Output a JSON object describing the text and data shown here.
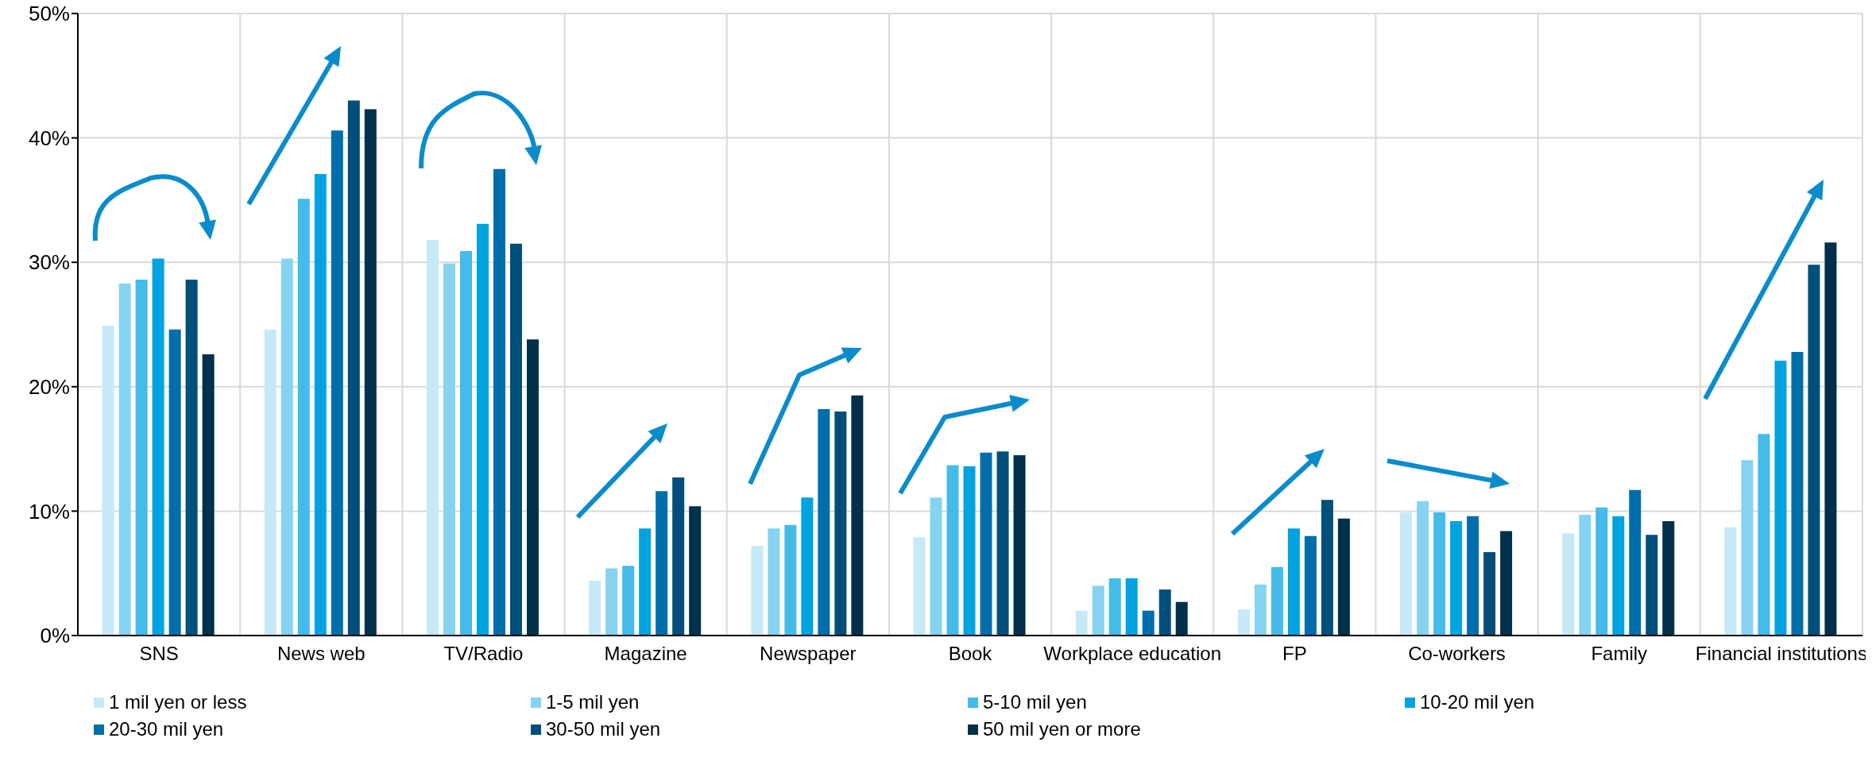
{
  "chart_data": {
    "type": "bar",
    "categories": [
      "SNS",
      "News web",
      "TV/Radio",
      "Magazine",
      "Newspaper",
      "Book",
      "Workplace education",
      "FP",
      "Co-workers",
      "Family",
      "Financial institutions"
    ],
    "series": [
      {
        "name": "1 mil yen or less",
        "color": "#c6e9f7",
        "values": [
          24.9,
          24.6,
          31.8,
          4.4,
          7.2,
          7.9,
          2.0,
          2.1,
          9.9,
          8.2,
          8.7
        ]
      },
      {
        "name": "1-5 mil yen",
        "color": "#86d3f1",
        "values": [
          28.3,
          30.3,
          29.9,
          5.4,
          8.6,
          11.1,
          4.0,
          4.1,
          10.8,
          9.7,
          14.1
        ]
      },
      {
        "name": "5-10 mil yen",
        "color": "#44bbe8",
        "values": [
          28.6,
          35.1,
          30.9,
          5.6,
          8.9,
          13.7,
          4.6,
          5.5,
          9.9,
          10.3,
          16.2
        ]
      },
      {
        "name": "10-20 mil yen",
        "color": "#00a3e0",
        "values": [
          30.3,
          37.1,
          33.1,
          8.6,
          11.1,
          13.6,
          4.6,
          8.6,
          9.2,
          9.6,
          22.1
        ]
      },
      {
        "name": "20-30 mil yen",
        "color": "#006eaa",
        "values": [
          24.6,
          40.6,
          37.5,
          11.6,
          18.2,
          14.7,
          2.0,
          8.0,
          9.6,
          11.7,
          22.8
        ]
      },
      {
        "name": "30-50 mil yen",
        "color": "#004f7a",
        "values": [
          28.6,
          43.0,
          31.5,
          12.7,
          18.0,
          14.8,
          3.7,
          10.9,
          6.7,
          8.1,
          29.8
        ]
      },
      {
        "name": "50 mil yen or more",
        "color": "#00304a",
        "values": [
          22.6,
          42.3,
          23.8,
          10.4,
          19.3,
          14.5,
          2.7,
          9.4,
          8.4,
          9.2,
          31.6
        ]
      }
    ],
    "ylim": [
      0,
      50
    ],
    "yticks": [
      {
        "value": 0,
        "label": "0%"
      },
      {
        "value": 10,
        "label": "10%"
      },
      {
        "value": 20,
        "label": "20%"
      },
      {
        "value": 30,
        "label": "30%"
      },
      {
        "value": 40,
        "label": "40%"
      },
      {
        "value": 50,
        "label": "50%"
      }
    ],
    "grid": true,
    "legend": "bottom"
  }
}
